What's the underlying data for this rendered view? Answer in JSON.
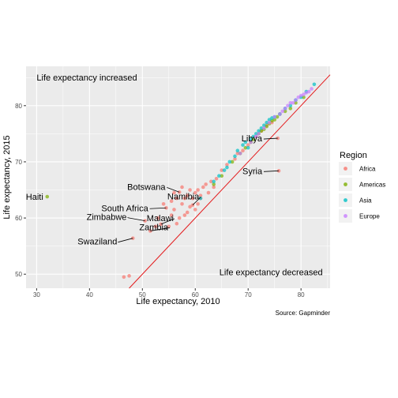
{
  "chart_data": {
    "type": "scatter",
    "xlabel": "Life expectancy, 2010",
    "ylabel": "Life expectancy, 2015",
    "xlim": [
      28,
      85.5
    ],
    "ylim": [
      47.5,
      87
    ],
    "x_ticks": [
      30,
      40,
      50,
      60,
      70,
      80
    ],
    "y_ticks": [
      50,
      60,
      70,
      80
    ],
    "grid": true,
    "reference_line": "y = x",
    "reference_line_color": "#e41a1c",
    "annotations": [
      {
        "text": "Life expectancy increased",
        "x": 30,
        "y": 84.5
      },
      {
        "text": "Life expectancy decreased",
        "x": 85,
        "y": 49.8
      }
    ],
    "caption": "Source: Gapminder",
    "legend": {
      "title": "Region",
      "position": "right",
      "entries": [
        {
          "name": "Africa",
          "color": "#f8766d"
        },
        {
          "name": "Americas",
          "color": "#7cae00"
        },
        {
          "name": "Asia",
          "color": "#00bfc4"
        },
        {
          "name": "Europe",
          "color": "#c77cff"
        }
      ]
    },
    "labels": [
      {
        "text": "Haiti",
        "x": 32,
        "y": 63.8
      },
      {
        "text": "Libya",
        "x": 75.6,
        "y": 74.2
      },
      {
        "text": "Syria",
        "x": 75.8,
        "y": 68.4
      },
      {
        "text": "Botswana",
        "x": 57,
        "y": 64.6
      },
      {
        "text": "Namibia",
        "x": 59.5,
        "y": 62.3
      },
      {
        "text": "South Africa",
        "x": 54.5,
        "y": 61.8
      },
      {
        "text": "Zimbabwe",
        "x": 50.5,
        "y": 59.5
      },
      {
        "text": "Malawi",
        "x": 53.5,
        "y": 58.9
      },
      {
        "text": "Zambia",
        "x": 51.5,
        "y": 57.7
      },
      {
        "text": "Swaziland",
        "x": 48.2,
        "y": 56.4
      }
    ],
    "series": [
      {
        "name": "Africa",
        "color": "#f8766d",
        "points": [
          [
            46.5,
            49.5
          ],
          [
            47.5,
            49.7
          ],
          [
            48.2,
            56.4
          ],
          [
            50.5,
            59.5
          ],
          [
            51.5,
            57.7
          ],
          [
            52.5,
            58.5
          ],
          [
            53.0,
            60.0
          ],
          [
            53.5,
            58.9
          ],
          [
            54.0,
            62.5
          ],
          [
            54.5,
            61.8
          ],
          [
            55.0,
            58.5
          ],
          [
            55.5,
            60.5
          ],
          [
            55.5,
            63.0
          ],
          [
            56.0,
            64.5
          ],
          [
            56.0,
            61.5
          ],
          [
            56.5,
            59.0
          ],
          [
            56.5,
            63.5
          ],
          [
            57.0,
            64.6
          ],
          [
            57.0,
            60.0
          ],
          [
            57.5,
            62.5
          ],
          [
            57.5,
            65.5
          ],
          [
            58.0,
            60.5
          ],
          [
            58.0,
            63.5
          ],
          [
            58.5,
            61.0
          ],
          [
            58.5,
            64.0
          ],
          [
            59.0,
            62.0
          ],
          [
            59.0,
            65.0
          ],
          [
            59.5,
            62.3
          ],
          [
            59.5,
            63.5
          ],
          [
            60.0,
            61.5
          ],
          [
            60.0,
            64.5
          ],
          [
            60.5,
            62.5
          ],
          [
            60.5,
            65.0
          ],
          [
            61.0,
            63.5
          ],
          [
            61.0,
            64.0
          ],
          [
            61.5,
            65.5
          ],
          [
            62.0,
            66.0
          ],
          [
            62.5,
            64.5
          ],
          [
            63.0,
            66.5
          ],
          [
            63.5,
            65.5
          ],
          [
            64.0,
            67.0
          ],
          [
            65.0,
            68.5
          ],
          [
            66.0,
            69.5
          ],
          [
            67.5,
            70.5
          ],
          [
            68.0,
            71.5
          ],
          [
            69.0,
            72.0
          ],
          [
            70.0,
            73.0
          ],
          [
            71.5,
            74.5
          ],
          [
            72.5,
            75.5
          ],
          [
            73.5,
            76.5
          ],
          [
            74.5,
            77.0
          ],
          [
            75.6,
            74.2
          ],
          [
            75.8,
            68.4
          ]
        ]
      },
      {
        "name": "Americas",
        "color": "#7cae00",
        "points": [
          [
            32.0,
            63.8
          ],
          [
            63.5,
            66.0
          ],
          [
            65.0,
            67.5
          ],
          [
            67.0,
            70.0
          ],
          [
            68.5,
            71.5
          ],
          [
            69.5,
            72.5
          ],
          [
            70.5,
            73.5
          ],
          [
            71.0,
            74.0
          ],
          [
            72.0,
            75.0
          ],
          [
            72.5,
            75.5
          ],
          [
            73.0,
            75.8
          ],
          [
            73.5,
            76.3
          ],
          [
            74.0,
            76.8
          ],
          [
            74.5,
            77.3
          ],
          [
            75.0,
            77.5
          ],
          [
            75.5,
            78.0
          ],
          [
            76.0,
            78.5
          ],
          [
            77.0,
            79.0
          ],
          [
            78.0,
            79.5
          ],
          [
            79.0,
            80.5
          ],
          [
            80.5,
            81.5
          ]
        ]
      },
      {
        "name": "Asia",
        "color": "#00bfc4",
        "points": [
          [
            61.0,
            63.5
          ],
          [
            63.5,
            66.5
          ],
          [
            64.5,
            67.5
          ],
          [
            65.5,
            68.5
          ],
          [
            66.0,
            69.0
          ],
          [
            66.5,
            70.0
          ],
          [
            67.5,
            71.0
          ],
          [
            68.0,
            72.0
          ],
          [
            69.0,
            73.0
          ],
          [
            69.5,
            73.5
          ],
          [
            70.0,
            72.5
          ],
          [
            70.5,
            74.0
          ],
          [
            71.0,
            74.5
          ],
          [
            71.5,
            75.0
          ],
          [
            72.0,
            75.5
          ],
          [
            72.5,
            76.0
          ],
          [
            73.0,
            76.5
          ],
          [
            73.5,
            77.0
          ],
          [
            74.0,
            77.5
          ],
          [
            74.5,
            77.8
          ],
          [
            75.0,
            78.0
          ],
          [
            76.0,
            78.5
          ],
          [
            77.0,
            79.5
          ],
          [
            78.0,
            80.0
          ],
          [
            79.0,
            81.0
          ],
          [
            80.0,
            81.5
          ],
          [
            81.0,
            82.5
          ],
          [
            82.5,
            83.8
          ]
        ]
      },
      {
        "name": "Europe",
        "color": "#c77cff",
        "points": [
          [
            68.5,
            71.5
          ],
          [
            70.5,
            73.5
          ],
          [
            71.5,
            74.5
          ],
          [
            72.0,
            75.0
          ],
          [
            73.0,
            76.0
          ],
          [
            74.0,
            77.0
          ],
          [
            75.0,
            78.0
          ],
          [
            76.0,
            78.5
          ],
          [
            76.5,
            79.0
          ],
          [
            77.0,
            79.5
          ],
          [
            77.5,
            80.0
          ],
          [
            78.0,
            80.5
          ],
          [
            78.5,
            80.5
          ],
          [
            79.0,
            81.0
          ],
          [
            79.5,
            81.5
          ],
          [
            80.0,
            81.8
          ],
          [
            80.5,
            82.0
          ],
          [
            81.0,
            82.3
          ],
          [
            81.5,
            82.5
          ],
          [
            82.0,
            83.0
          ]
        ]
      }
    ]
  }
}
